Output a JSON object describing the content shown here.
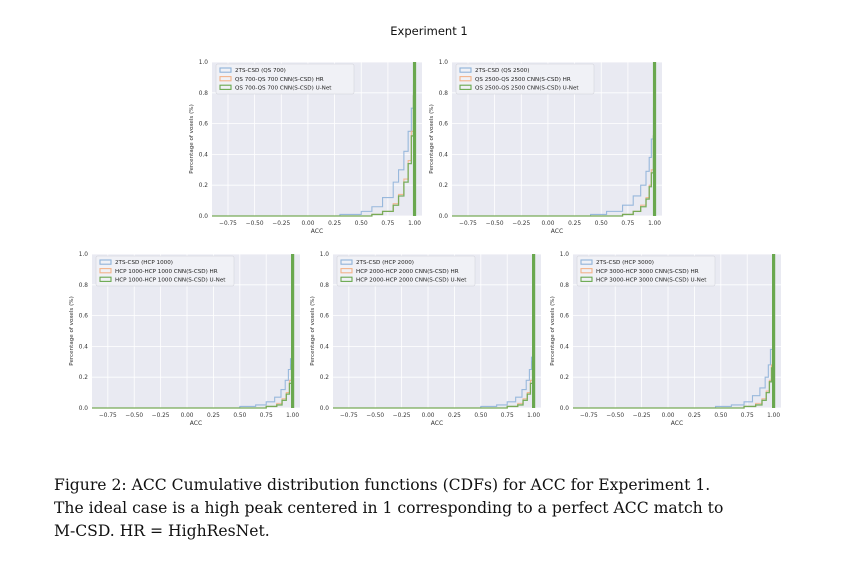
{
  "figure": {
    "title": "Experiment 1",
    "caption_lines": [
      "Figure 2:  ACC Cumulative distribution functions (CDFs) for ACC for Experiment 1.",
      "The ideal case is a high peak centered in 1 corresponding to a perfect ACC match to",
      "M-CSD. HR = HighResNet."
    ]
  },
  "colors": {
    "blue": "#8fb3d9",
    "orange": "#f2b38a",
    "green": "#6aa84f",
    "panel_bg": "#e9eaf2",
    "grid": "#ffffff"
  },
  "chart_data": [
    {
      "type": "line",
      "drawstyle": "steps",
      "title": "",
      "xlabel": "ACC",
      "ylabel": "Percentage of voxels (%)",
      "xlim": [
        -0.9,
        1.07
      ],
      "ylim": [
        0,
        1.0
      ],
      "xticks": [
        -0.75,
        -0.5,
        -0.25,
        0.0,
        0.25,
        0.5,
        0.75,
        1.0
      ],
      "xtick_labels": [
        "−0.75",
        "−0.50",
        "−0.25",
        "0.00",
        "0.25",
        "0.50",
        "0.75",
        "1.00"
      ],
      "yticks": [
        0.0,
        0.2,
        0.4,
        0.6,
        0.8,
        1.0
      ],
      "ytick_labels": [
        "0.0",
        "0.2",
        "0.4",
        "0.6",
        "0.8",
        "1.0"
      ],
      "legend_position": "top-left",
      "grid": true,
      "series": [
        {
          "name": "2TS-CSD (QS 700)",
          "color_key": "blue",
          "x": [
            -0.9,
            0.3,
            0.5,
            0.6,
            0.7,
            0.8,
            0.85,
            0.9,
            0.94,
            0.97,
            0.99,
            1.0
          ],
          "y": [
            0.0,
            0.01,
            0.03,
            0.06,
            0.12,
            0.22,
            0.3,
            0.42,
            0.55,
            0.7,
            0.85,
            1.0
          ]
        },
        {
          "name": "QS 700-QS 700 CNN(S-CSD) HR",
          "color_key": "orange",
          "x": [
            -0.9,
            0.6,
            0.7,
            0.8,
            0.85,
            0.9,
            0.94,
            0.97,
            0.99,
            1.0
          ],
          "y": [
            0.0,
            0.01,
            0.03,
            0.08,
            0.14,
            0.24,
            0.36,
            0.55,
            0.8,
            1.0
          ]
        },
        {
          "name": "QS 700-QS 700 CNN(S-CSD) U-Net",
          "color_key": "green",
          "x": [
            -0.9,
            0.6,
            0.7,
            0.8,
            0.85,
            0.9,
            0.94,
            0.97,
            0.99,
            1.0
          ],
          "y": [
            0.0,
            0.01,
            0.03,
            0.07,
            0.13,
            0.22,
            0.34,
            0.52,
            0.78,
            1.0
          ]
        }
      ]
    },
    {
      "type": "line",
      "drawstyle": "steps",
      "title": "",
      "xlabel": "ACC",
      "ylabel": "Percentage of voxels (%)",
      "xlim": [
        -0.9,
        1.07
      ],
      "ylim": [
        0,
        1.0
      ],
      "xticks": [
        -0.75,
        -0.5,
        -0.25,
        0.0,
        0.25,
        0.5,
        0.75,
        1.0
      ],
      "xtick_labels": [
        "−0.75",
        "−0.50",
        "−0.25",
        "0.00",
        "0.25",
        "0.50",
        "0.75",
        "1.00"
      ],
      "yticks": [
        0.0,
        0.2,
        0.4,
        0.6,
        0.8,
        1.0
      ],
      "ytick_labels": [
        "0.0",
        "0.2",
        "0.4",
        "0.6",
        "0.8",
        "1.0"
      ],
      "legend_position": "top-left",
      "grid": true,
      "series": [
        {
          "name": "2TS-CSD (QS 2500)",
          "color_key": "blue",
          "x": [
            -0.9,
            0.4,
            0.55,
            0.7,
            0.8,
            0.87,
            0.92,
            0.95,
            0.97,
            0.99,
            1.0
          ],
          "y": [
            0.0,
            0.01,
            0.03,
            0.07,
            0.13,
            0.2,
            0.29,
            0.38,
            0.5,
            0.7,
            1.0
          ]
        },
        {
          "name": "QS 2500-QS 2500 CNN(S-CSD) HR",
          "color_key": "orange",
          "x": [
            -0.9,
            0.7,
            0.8,
            0.87,
            0.92,
            0.95,
            0.97,
            0.99,
            1.0
          ],
          "y": [
            0.0,
            0.01,
            0.03,
            0.07,
            0.12,
            0.2,
            0.3,
            0.55,
            1.0
          ]
        },
        {
          "name": "QS 2500-QS 2500 CNN(S-CSD) U-Net",
          "color_key": "green",
          "x": [
            -0.9,
            0.7,
            0.8,
            0.87,
            0.92,
            0.95,
            0.97,
            0.99,
            1.0
          ],
          "y": [
            0.0,
            0.01,
            0.03,
            0.06,
            0.11,
            0.19,
            0.28,
            0.52,
            1.0
          ]
        }
      ]
    },
    {
      "type": "line",
      "drawstyle": "steps",
      "title": "",
      "xlabel": "ACC",
      "ylabel": "Percentage of voxels (%)",
      "xlim": [
        -0.9,
        1.07
      ],
      "ylim": [
        0,
        1.0
      ],
      "xticks": [
        -0.75,
        -0.5,
        -0.25,
        0.0,
        0.25,
        0.5,
        0.75,
        1.0
      ],
      "xtick_labels": [
        "−0.75",
        "−0.50",
        "−0.25",
        "0.00",
        "0.25",
        "0.50",
        "0.75",
        "1.00"
      ],
      "yticks": [
        0.0,
        0.2,
        0.4,
        0.6,
        0.8,
        1.0
      ],
      "ytick_labels": [
        "0.0",
        "0.2",
        "0.4",
        "0.6",
        "0.8",
        "1.0"
      ],
      "legend_position": "top-left",
      "grid": true,
      "series": [
        {
          "name": "2TS-CSD (HCP 1000)",
          "color_key": "blue",
          "x": [
            -0.9,
            0.5,
            0.65,
            0.75,
            0.83,
            0.89,
            0.93,
            0.96,
            0.98,
            0.99,
            1.0
          ],
          "y": [
            0.0,
            0.01,
            0.02,
            0.04,
            0.07,
            0.12,
            0.18,
            0.25,
            0.32,
            0.4,
            1.0
          ]
        },
        {
          "name": "HCP 1000-HCP 1000 CNN(S-CSD) HR",
          "color_key": "orange",
          "x": [
            -0.9,
            0.75,
            0.85,
            0.9,
            0.94,
            0.97,
            0.99,
            1.0
          ],
          "y": [
            0.0,
            0.01,
            0.03,
            0.06,
            0.1,
            0.18,
            0.3,
            1.0
          ]
        },
        {
          "name": "HCP 1000-HCP 1000 CNN(S-CSD) U-Net",
          "color_key": "green",
          "x": [
            -0.9,
            0.75,
            0.85,
            0.9,
            0.94,
            0.97,
            0.99,
            1.0
          ],
          "y": [
            0.0,
            0.01,
            0.02,
            0.05,
            0.09,
            0.16,
            0.28,
            1.0
          ]
        }
      ]
    },
    {
      "type": "line",
      "drawstyle": "steps",
      "title": "",
      "xlabel": "ACC",
      "ylabel": "Percentage of voxels (%)",
      "xlim": [
        -0.9,
        1.07
      ],
      "ylim": [
        0,
        1.0
      ],
      "xticks": [
        -0.75,
        -0.5,
        -0.25,
        0.0,
        0.25,
        0.5,
        0.75,
        1.0
      ],
      "xtick_labels": [
        "−0.75",
        "−0.50",
        "−0.25",
        "0.00",
        "0.25",
        "0.50",
        "0.75",
        "1.00"
      ],
      "yticks": [
        0.0,
        0.2,
        0.4,
        0.6,
        0.8,
        1.0
      ],
      "ytick_labels": [
        "0.0",
        "0.2",
        "0.4",
        "0.6",
        "0.8",
        "1.0"
      ],
      "legend_position": "top-left",
      "grid": true,
      "series": [
        {
          "name": "2TS-CSD (HCP 2000)",
          "color_key": "blue",
          "x": [
            -0.9,
            0.5,
            0.65,
            0.75,
            0.83,
            0.89,
            0.93,
            0.96,
            0.98,
            0.99,
            1.0
          ],
          "y": [
            0.0,
            0.01,
            0.02,
            0.04,
            0.07,
            0.12,
            0.18,
            0.25,
            0.33,
            0.45,
            1.0
          ]
        },
        {
          "name": "HCP 2000-HCP 2000 CNN(S-CSD) HR",
          "color_key": "orange",
          "x": [
            -0.9,
            0.75,
            0.85,
            0.9,
            0.94,
            0.97,
            0.99,
            1.0
          ],
          "y": [
            0.0,
            0.01,
            0.03,
            0.06,
            0.1,
            0.18,
            0.32,
            1.0
          ]
        },
        {
          "name": "HCP 2000-HCP 2000 CNN(S-CSD) U-Net",
          "color_key": "green",
          "x": [
            -0.9,
            0.75,
            0.85,
            0.9,
            0.94,
            0.97,
            0.99,
            1.0
          ],
          "y": [
            0.0,
            0.01,
            0.02,
            0.05,
            0.09,
            0.16,
            0.3,
            1.0
          ]
        }
      ]
    },
    {
      "type": "line",
      "drawstyle": "steps",
      "title": "",
      "xlabel": "ACC",
      "ylabel": "Percentage of voxels (%)",
      "xlim": [
        -0.9,
        1.07
      ],
      "ylim": [
        0,
        1.0
      ],
      "xticks": [
        -0.75,
        -0.5,
        -0.25,
        0.0,
        0.25,
        0.5,
        0.75,
        1.0
      ],
      "xtick_labels": [
        "−0.75",
        "−0.50",
        "−0.25",
        "0.00",
        "0.25",
        "0.50",
        "0.75",
        "1.00"
      ],
      "yticks": [
        0.0,
        0.2,
        0.4,
        0.6,
        0.8,
        1.0
      ],
      "ytick_labels": [
        "0.0",
        "0.2",
        "0.4",
        "0.6",
        "0.8",
        "1.0"
      ],
      "legend_position": "top-left",
      "grid": true,
      "series": [
        {
          "name": "2TS-CSD (HCP 3000)",
          "color_key": "blue",
          "x": [
            -0.9,
            0.45,
            0.6,
            0.72,
            0.8,
            0.87,
            0.92,
            0.95,
            0.97,
            0.99,
            1.0
          ],
          "y": [
            0.0,
            0.01,
            0.02,
            0.04,
            0.08,
            0.13,
            0.2,
            0.28,
            0.38,
            0.55,
            1.0
          ]
        },
        {
          "name": "HCP 3000-HCP 3000 CNN(S-CSD) HR",
          "color_key": "orange",
          "x": [
            -0.9,
            0.72,
            0.83,
            0.89,
            0.93,
            0.96,
            0.98,
            0.99,
            1.0
          ],
          "y": [
            0.0,
            0.01,
            0.03,
            0.06,
            0.11,
            0.18,
            0.28,
            0.4,
            1.0
          ]
        },
        {
          "name": "HCP 3000-HCP 3000 CNN(S-CSD) U-Net",
          "color_key": "green",
          "x": [
            -0.9,
            0.72,
            0.83,
            0.89,
            0.93,
            0.96,
            0.98,
            0.99,
            1.0
          ],
          "y": [
            0.0,
            0.01,
            0.02,
            0.05,
            0.1,
            0.17,
            0.26,
            0.38,
            1.0
          ]
        }
      ]
    }
  ]
}
